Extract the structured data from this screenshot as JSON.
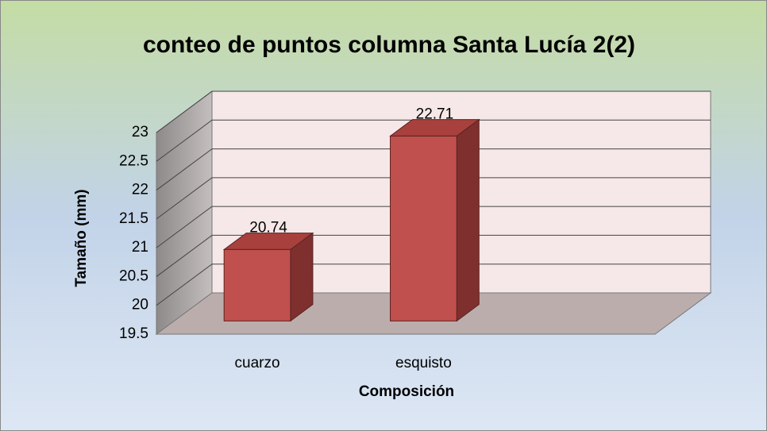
{
  "chart_data": {
    "type": "bar3d",
    "title": "conteo de puntos columna Santa Lucía 2(2)",
    "x_label": "Composición",
    "y_label": "Tamaño (mm)",
    "categories": [
      "cuarzo",
      "esquisto",
      null
    ],
    "values": [
      20.74,
      22.71,
      null
    ],
    "color": "#c0504d",
    "ylim": [
      19.5,
      23
    ],
    "yticks": [
      19.5,
      20,
      20.5,
      21,
      21.5,
      22,
      22.5,
      23
    ],
    "grid": true
  }
}
